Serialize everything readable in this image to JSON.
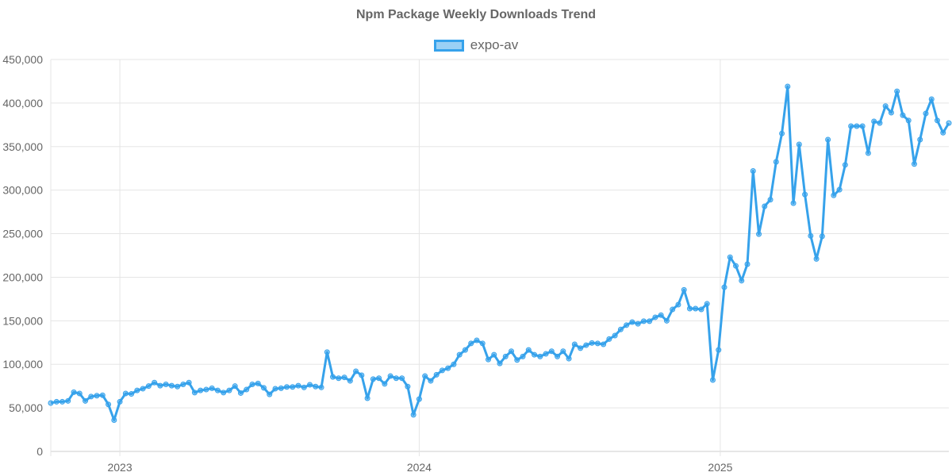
{
  "chart_data": {
    "type": "line",
    "title": "Npm Package Weekly Downloads Trend",
    "xlabel": "",
    "ylabel": "",
    "ylim": [
      0,
      450000
    ],
    "y_ticks": [
      "0",
      "50,000",
      "100,000",
      "150,000",
      "200,000",
      "250,000",
      "300,000",
      "350,000",
      "400,000",
      "450,000"
    ],
    "x_ticks": [
      {
        "label": "2023",
        "index": 12
      },
      {
        "label": "2024",
        "index": 64
      },
      {
        "label": "2025",
        "index": 116.3
      }
    ],
    "grid": true,
    "legend_position": "top-center",
    "series": [
      {
        "name": "expo-av",
        "color": "#36a2eb",
        "values": [
          55600,
          57000,
          57000,
          58000,
          68000,
          66500,
          58000,
          63000,
          64000,
          64500,
          54000,
          36000,
          57000,
          66500,
          66000,
          70000,
          72000,
          75000,
          79000,
          75500,
          77000,
          75500,
          74500,
          77000,
          79000,
          67500,
          70000,
          71000,
          72500,
          70000,
          67500,
          70000,
          75000,
          67000,
          71000,
          77000,
          78000,
          73000,
          65500,
          72000,
          72500,
          74000,
          74000,
          75500,
          73500,
          76500,
          74500,
          73500,
          114000,
          85500,
          84000,
          85000,
          81000,
          92000,
          87500,
          61000,
          83000,
          84000,
          77500,
          86500,
          84000,
          84000,
          74500,
          42000,
          60000,
          86500,
          81000,
          88000,
          93000,
          95500,
          100000,
          111000,
          116500,
          124000,
          127500,
          124000,
          105500,
          111000,
          101000,
          109000,
          115000,
          105000,
          109000,
          116500,
          111000,
          109000,
          112000,
          115000,
          109000,
          115000,
          106500,
          123000,
          118500,
          122000,
          124500,
          124000,
          123000,
          129000,
          133000,
          140000,
          145000,
          148500,
          146500,
          149500,
          149500,
          154000,
          156500,
          150000,
          163000,
          168500,
          185500,
          164000,
          164000,
          163000,
          169500,
          82000,
          116500,
          188500,
          223000,
          213000,
          196000,
          215000,
          322000,
          249500,
          281500,
          289000,
          332500,
          365000,
          419000,
          285000,
          352500,
          295000,
          247500,
          221000,
          247000,
          358000,
          294000,
          300500,
          329000,
          373500,
          373500,
          373500,
          342500,
          379000,
          377000,
          396500,
          389000,
          413500,
          386000,
          380000,
          330000,
          358000,
          388000,
          404500,
          380000,
          366000,
          377000
        ]
      }
    ]
  }
}
